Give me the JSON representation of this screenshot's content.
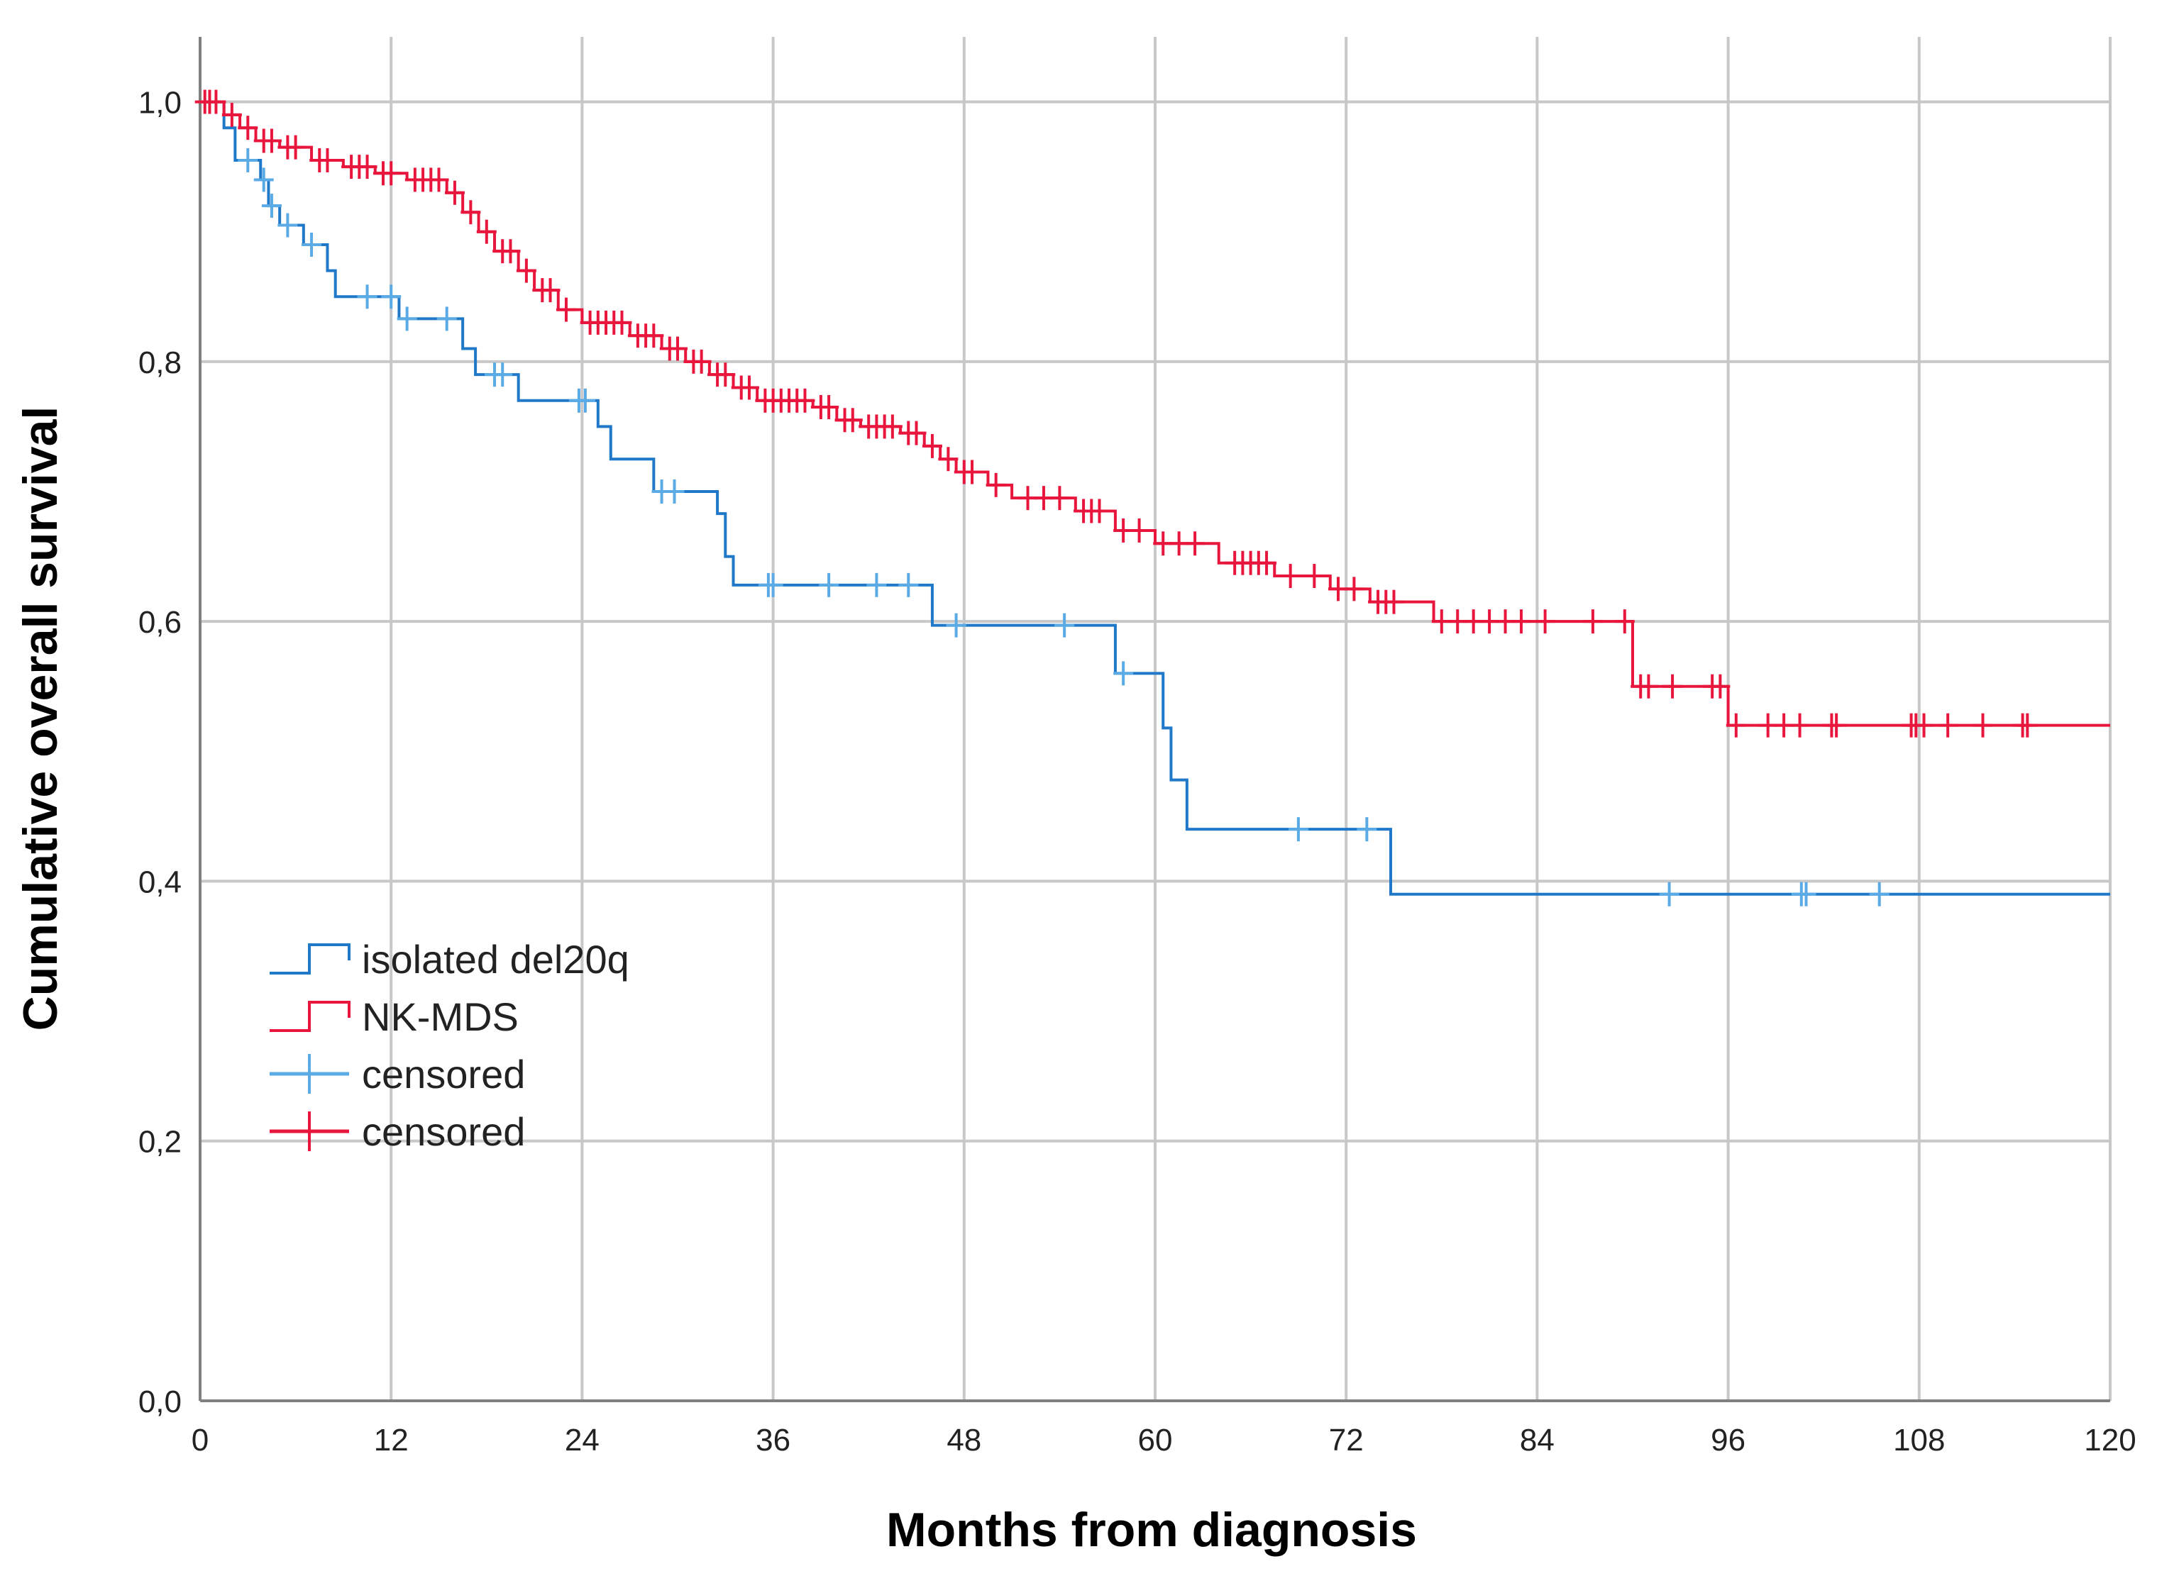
{
  "chart_data": {
    "type": "line",
    "step": true,
    "title": "",
    "xlabel": "Months from diagnosis",
    "ylabel": "Cumulative overall survival",
    "xlim": [
      0,
      120
    ],
    "ylim": [
      0,
      1.0
    ],
    "x_ticks": [
      "0",
      "12",
      "24",
      "36",
      "48",
      "60",
      "72",
      "84",
      "96",
      "108",
      "120"
    ],
    "y_ticks": [
      "0,0",
      "0,2",
      "0,4",
      "0,6",
      "0,8",
      "1,0"
    ],
    "grid": true,
    "legend_position": "lower-left",
    "legend": [
      {
        "label": "isolated del20q",
        "kind": "line",
        "color": "#1f78c8"
      },
      {
        "label": "NK-MDS",
        "kind": "line",
        "color": "#e8163c"
      },
      {
        "label": "censored",
        "kind": "censor",
        "color": "#5aaae6"
      },
      {
        "label": "censored",
        "kind": "censor",
        "color": "#e8163c"
      }
    ],
    "series": [
      {
        "name": "isolated del20q",
        "color": "#1f78c8",
        "censor_color": "#5aaae6",
        "steps": [
          [
            0,
            1.0
          ],
          [
            1.5,
            0.98
          ],
          [
            2.2,
            0.955
          ],
          [
            3.2,
            0.955
          ],
          [
            3.8,
            0.94
          ],
          [
            4.3,
            0.92
          ],
          [
            5.0,
            0.905
          ],
          [
            6.5,
            0.89
          ],
          [
            8.0,
            0.87
          ],
          [
            8.5,
            0.85
          ],
          [
            12.5,
            0.833
          ],
          [
            16.5,
            0.81
          ],
          [
            17.3,
            0.79
          ],
          [
            20.0,
            0.77
          ],
          [
            23.5,
            0.77
          ],
          [
            25.0,
            0.75
          ],
          [
            25.8,
            0.725
          ],
          [
            28.5,
            0.7
          ],
          [
            32.5,
            0.683
          ],
          [
            33.0,
            0.65
          ],
          [
            33.5,
            0.628
          ],
          [
            46.0,
            0.597
          ],
          [
            57.5,
            0.56
          ],
          [
            60.5,
            0.518
          ],
          [
            61.0,
            0.478
          ],
          [
            62.0,
            0.44
          ],
          [
            74.8,
            0.39
          ],
          [
            120,
            0.39
          ]
        ],
        "censored": [
          [
            3.0,
            0.955
          ],
          [
            4.0,
            0.94
          ],
          [
            4.5,
            0.92
          ],
          [
            5.5,
            0.905
          ],
          [
            7.0,
            0.89
          ],
          [
            10.5,
            0.85
          ],
          [
            12.0,
            0.85
          ],
          [
            13.0,
            0.833
          ],
          [
            15.5,
            0.833
          ],
          [
            18.5,
            0.79
          ],
          [
            19.0,
            0.79
          ],
          [
            23.8,
            0.77
          ],
          [
            24.2,
            0.77
          ],
          [
            29.0,
            0.7
          ],
          [
            29.8,
            0.7
          ],
          [
            35.7,
            0.628
          ],
          [
            36.0,
            0.628
          ],
          [
            39.5,
            0.628
          ],
          [
            42.5,
            0.628
          ],
          [
            44.5,
            0.628
          ],
          [
            47.5,
            0.597
          ],
          [
            54.3,
            0.597
          ],
          [
            58.0,
            0.56
          ],
          [
            69.0,
            0.44
          ],
          [
            73.3,
            0.44
          ],
          [
            92.3,
            0.39
          ],
          [
            100.6,
            0.39
          ],
          [
            100.9,
            0.39
          ],
          [
            105.5,
            0.39
          ]
        ]
      },
      {
        "name": "NK-MDS",
        "color": "#e8163c",
        "censor_color": "#e8163c",
        "steps": [
          [
            0,
            1.0
          ],
          [
            1.5,
            0.99
          ],
          [
            2.5,
            0.98
          ],
          [
            3.5,
            0.97
          ],
          [
            5.0,
            0.965
          ],
          [
            7.0,
            0.955
          ],
          [
            9.0,
            0.95
          ],
          [
            11.0,
            0.945
          ],
          [
            13.0,
            0.94
          ],
          [
            15.5,
            0.93
          ],
          [
            16.5,
            0.915
          ],
          [
            17.5,
            0.9
          ],
          [
            18.5,
            0.885
          ],
          [
            20.0,
            0.87
          ],
          [
            21.0,
            0.855
          ],
          [
            22.5,
            0.84
          ],
          [
            24.0,
            0.83
          ],
          [
            27.0,
            0.82
          ],
          [
            29.0,
            0.81
          ],
          [
            30.5,
            0.8
          ],
          [
            32.0,
            0.79
          ],
          [
            33.5,
            0.78
          ],
          [
            35.0,
            0.77
          ],
          [
            38.5,
            0.765
          ],
          [
            40.0,
            0.755
          ],
          [
            41.5,
            0.75
          ],
          [
            44.0,
            0.745
          ],
          [
            45.5,
            0.735
          ],
          [
            46.5,
            0.725
          ],
          [
            47.5,
            0.715
          ],
          [
            49.5,
            0.705
          ],
          [
            51.0,
            0.695
          ],
          [
            55.0,
            0.685
          ],
          [
            57.5,
            0.67
          ],
          [
            60.0,
            0.66
          ],
          [
            64.0,
            0.645
          ],
          [
            67.5,
            0.635
          ],
          [
            71.0,
            0.625
          ],
          [
            73.5,
            0.615
          ],
          [
            77.5,
            0.6
          ],
          [
            90.0,
            0.55
          ],
          [
            96.0,
            0.52
          ],
          [
            120,
            0.52
          ]
        ],
        "censored": [
          [
            0.3,
            1.0
          ],
          [
            0.6,
            1.0
          ],
          [
            1.0,
            1.0
          ],
          [
            2.0,
            0.99
          ],
          [
            3.0,
            0.98
          ],
          [
            4.0,
            0.97
          ],
          [
            4.5,
            0.97
          ],
          [
            5.5,
            0.965
          ],
          [
            6.0,
            0.965
          ],
          [
            7.5,
            0.955
          ],
          [
            8.0,
            0.955
          ],
          [
            9.5,
            0.95
          ],
          [
            10.0,
            0.95
          ],
          [
            10.5,
            0.95
          ],
          [
            11.5,
            0.945
          ],
          [
            12.0,
            0.945
          ],
          [
            13.5,
            0.94
          ],
          [
            14.0,
            0.94
          ],
          [
            14.5,
            0.94
          ],
          [
            15.0,
            0.94
          ],
          [
            16.0,
            0.93
          ],
          [
            17.0,
            0.915
          ],
          [
            18.0,
            0.9
          ],
          [
            19.0,
            0.885
          ],
          [
            19.5,
            0.885
          ],
          [
            20.5,
            0.87
          ],
          [
            21.5,
            0.855
          ],
          [
            22.0,
            0.855
          ],
          [
            23.0,
            0.84
          ],
          [
            24.5,
            0.83
          ],
          [
            25.0,
            0.83
          ],
          [
            25.5,
            0.83
          ],
          [
            26.0,
            0.83
          ],
          [
            26.5,
            0.83
          ],
          [
            27.5,
            0.82
          ],
          [
            28.0,
            0.82
          ],
          [
            28.5,
            0.82
          ],
          [
            29.5,
            0.81
          ],
          [
            30.0,
            0.81
          ],
          [
            31.0,
            0.8
          ],
          [
            31.5,
            0.8
          ],
          [
            32.5,
            0.79
          ],
          [
            33.0,
            0.79
          ],
          [
            34.0,
            0.78
          ],
          [
            34.5,
            0.78
          ],
          [
            35.5,
            0.77
          ],
          [
            36.0,
            0.77
          ],
          [
            36.5,
            0.77
          ],
          [
            37.0,
            0.77
          ],
          [
            37.5,
            0.77
          ],
          [
            38.0,
            0.77
          ],
          [
            39.0,
            0.765
          ],
          [
            39.5,
            0.765
          ],
          [
            40.5,
            0.755
          ],
          [
            41.0,
            0.755
          ],
          [
            42.0,
            0.75
          ],
          [
            42.5,
            0.75
          ],
          [
            43.0,
            0.75
          ],
          [
            43.5,
            0.75
          ],
          [
            44.5,
            0.745
          ],
          [
            45.0,
            0.745
          ],
          [
            46.0,
            0.735
          ],
          [
            47.0,
            0.725
          ],
          [
            48.0,
            0.715
          ],
          [
            48.5,
            0.715
          ],
          [
            50.0,
            0.705
          ],
          [
            52.0,
            0.695
          ],
          [
            53.0,
            0.695
          ],
          [
            54.0,
            0.695
          ],
          [
            55.5,
            0.685
          ],
          [
            56.0,
            0.685
          ],
          [
            56.5,
            0.685
          ],
          [
            58.0,
            0.67
          ],
          [
            59.0,
            0.67
          ],
          [
            60.5,
            0.66
          ],
          [
            61.5,
            0.66
          ],
          [
            62.5,
            0.66
          ],
          [
            65.0,
            0.645
          ],
          [
            65.5,
            0.645
          ],
          [
            66.0,
            0.645
          ],
          [
            66.5,
            0.645
          ],
          [
            67.0,
            0.645
          ],
          [
            68.5,
            0.635
          ],
          [
            70.0,
            0.635
          ],
          [
            71.5,
            0.625
          ],
          [
            72.5,
            0.625
          ],
          [
            74.0,
            0.615
          ],
          [
            74.5,
            0.615
          ],
          [
            75.0,
            0.615
          ],
          [
            78.0,
            0.6
          ],
          [
            79.0,
            0.6
          ],
          [
            80.0,
            0.6
          ],
          [
            81.0,
            0.6
          ],
          [
            82.0,
            0.6
          ],
          [
            83.0,
            0.6
          ],
          [
            84.5,
            0.6
          ],
          [
            87.5,
            0.6
          ],
          [
            89.5,
            0.6
          ],
          [
            90.5,
            0.55
          ],
          [
            91.0,
            0.55
          ],
          [
            92.5,
            0.55
          ],
          [
            95.0,
            0.55
          ],
          [
            95.5,
            0.55
          ],
          [
            96.5,
            0.52
          ],
          [
            98.5,
            0.52
          ],
          [
            99.5,
            0.52
          ],
          [
            100.5,
            0.52
          ],
          [
            102.5,
            0.52
          ],
          [
            102.8,
            0.52
          ],
          [
            107.5,
            0.52
          ],
          [
            107.8,
            0.52
          ],
          [
            108.3,
            0.52
          ],
          [
            109.8,
            0.52
          ],
          [
            112.0,
            0.52
          ],
          [
            114.5,
            0.52
          ],
          [
            114.8,
            0.52
          ]
        ]
      }
    ]
  }
}
